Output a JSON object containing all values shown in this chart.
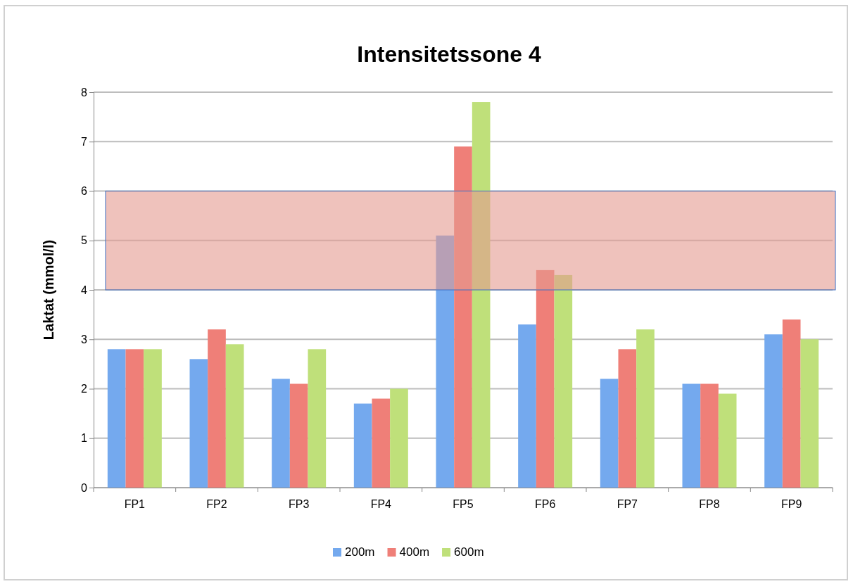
{
  "chart_data": {
    "type": "bar",
    "title": "Intensitetssone 4",
    "ylabel": "Laktat (mmol/l)",
    "categories": [
      "FP1",
      "FP2",
      "FP3",
      "FP4",
      "FP5",
      "FP6",
      "FP7",
      "FP8",
      "FP9"
    ],
    "series": [
      {
        "name": "200m",
        "color": "#74a9ee",
        "values": [
          2.8,
          2.6,
          2.2,
          1.7,
          5.1,
          3.3,
          2.2,
          2.1,
          3.1
        ]
      },
      {
        "name": "400m",
        "color": "#ef7f78",
        "values": [
          2.8,
          3.2,
          2.1,
          1.8,
          6.9,
          4.4,
          2.8,
          2.1,
          3.4
        ]
      },
      {
        "name": "600m",
        "color": "#bfe07a",
        "values": [
          2.8,
          2.9,
          2.8,
          2.0,
          7.8,
          4.3,
          3.2,
          1.9,
          3.0
        ]
      }
    ],
    "ylim": [
      0,
      8
    ],
    "yticks": [
      0,
      1,
      2,
      3,
      4,
      5,
      6,
      7,
      8
    ],
    "grid": "y",
    "legend": "bottom",
    "bands": [
      {
        "axis": "y",
        "from": 4,
        "to": 6,
        "color": "#e49a90"
      }
    ]
  }
}
